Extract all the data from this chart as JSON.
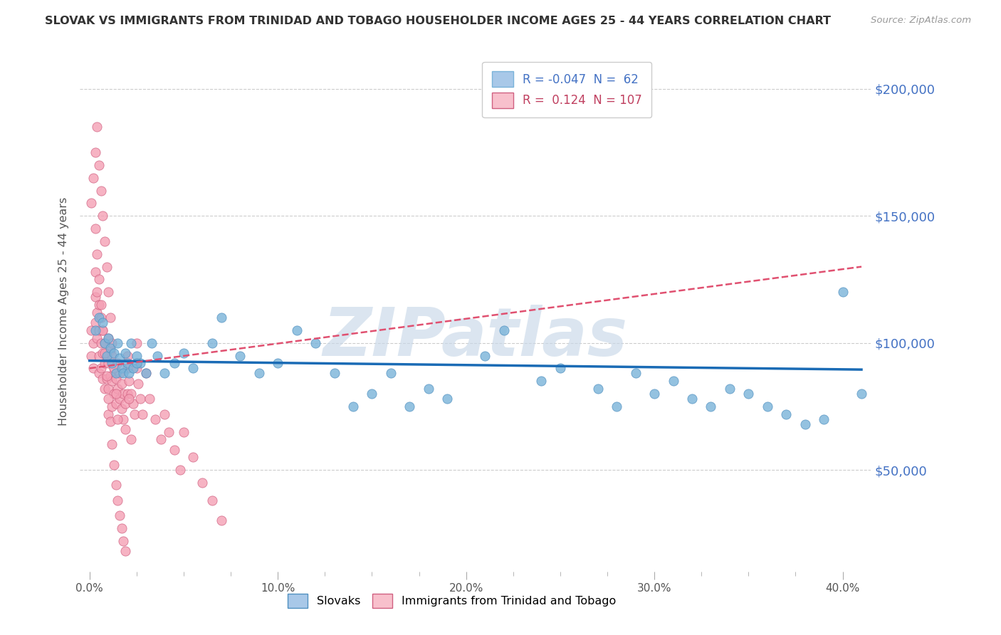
{
  "title": "SLOVAK VS IMMIGRANTS FROM TRINIDAD AND TOBAGO HOUSEHOLDER INCOME AGES 25 - 44 YEARS CORRELATION CHART",
  "source": "Source: ZipAtlas.com",
  "xlabel_ticks": [
    "0.0%",
    "",
    "",
    "",
    "10.0%",
    "",
    "",
    "",
    "20.0%",
    "",
    "",
    "",
    "30.0%",
    "",
    "",
    "",
    "40.0%"
  ],
  "xlabel_values": [
    0.0,
    0.025,
    0.05,
    0.075,
    0.1,
    0.125,
    0.15,
    0.175,
    0.2,
    0.225,
    0.25,
    0.275,
    0.3,
    0.325,
    0.35,
    0.375,
    0.4
  ],
  "xlabel_major": [
    0.0,
    0.1,
    0.2,
    0.3,
    0.4
  ],
  "xlabel_major_labels": [
    "0.0%",
    "10.0%",
    "20.0%",
    "30.0%",
    "40.0%"
  ],
  "ylabel": "Householder Income Ages 25 - 44 years",
  "ylabel_major": [
    50000,
    100000,
    150000,
    200000
  ],
  "ylabel_major_labels": [
    "$50,000",
    "$100,000",
    "$150,000",
    "$200,000"
  ],
  "ylim": [
    10000,
    215000
  ],
  "xlim": [
    -0.005,
    0.415
  ],
  "legend_blue_label": "R = -0.047  N =  62",
  "legend_pink_label": "R =  0.124  N = 107",
  "blue_color": "#7ab3d9",
  "blue_edge": "#5090c0",
  "blue_legend_color": "#a8c8e8",
  "pink_color": "#f4a0b5",
  "pink_edge": "#d06080",
  "pink_legend_color": "#f8c0cc",
  "trend_blue_color": "#1a6bb5",
  "trend_pink_color": "#e05070",
  "watermark": "ZIPatlas",
  "watermark_color": "#c8d8e8",
  "bg_color": "#ffffff",
  "grid_color": "#cccccc",
  "yaxis_label_color": "#4472c4",
  "blue_x": [
    0.003,
    0.005,
    0.007,
    0.008,
    0.009,
    0.01,
    0.011,
    0.012,
    0.013,
    0.014,
    0.015,
    0.016,
    0.017,
    0.018,
    0.019,
    0.02,
    0.021,
    0.022,
    0.023,
    0.025,
    0.027,
    0.03,
    0.033,
    0.036,
    0.04,
    0.045,
    0.05,
    0.055,
    0.065,
    0.07,
    0.08,
    0.09,
    0.1,
    0.12,
    0.13,
    0.14,
    0.15,
    0.16,
    0.17,
    0.18,
    0.19,
    0.21,
    0.22,
    0.24,
    0.25,
    0.27,
    0.28,
    0.29,
    0.3,
    0.31,
    0.32,
    0.33,
    0.34,
    0.35,
    0.36,
    0.37,
    0.38,
    0.39,
    0.4,
    0.41,
    0.025,
    0.11
  ],
  "blue_y": [
    105000,
    110000,
    108000,
    100000,
    95000,
    102000,
    98000,
    92000,
    96000,
    88000,
    100000,
    94000,
    90000,
    88000,
    96000,
    92000,
    88000,
    100000,
    90000,
    95000,
    92000,
    88000,
    100000,
    95000,
    88000,
    92000,
    96000,
    90000,
    100000,
    110000,
    95000,
    88000,
    92000,
    100000,
    88000,
    75000,
    80000,
    88000,
    75000,
    82000,
    78000,
    95000,
    105000,
    85000,
    90000,
    82000,
    75000,
    88000,
    80000,
    85000,
    78000,
    75000,
    82000,
    80000,
    75000,
    72000,
    68000,
    70000,
    120000,
    80000,
    92000,
    105000
  ],
  "pink_x": [
    0.001,
    0.001,
    0.002,
    0.002,
    0.003,
    0.003,
    0.003,
    0.004,
    0.004,
    0.004,
    0.005,
    0.005,
    0.005,
    0.005,
    0.006,
    0.006,
    0.006,
    0.007,
    0.007,
    0.007,
    0.008,
    0.008,
    0.008,
    0.009,
    0.009,
    0.01,
    0.01,
    0.01,
    0.01,
    0.011,
    0.011,
    0.012,
    0.012,
    0.012,
    0.013,
    0.013,
    0.014,
    0.014,
    0.015,
    0.015,
    0.016,
    0.016,
    0.017,
    0.017,
    0.018,
    0.018,
    0.019,
    0.019,
    0.02,
    0.02,
    0.021,
    0.022,
    0.023,
    0.024,
    0.025,
    0.026,
    0.027,
    0.028,
    0.03,
    0.032,
    0.035,
    0.038,
    0.04,
    0.042,
    0.045,
    0.048,
    0.05,
    0.055,
    0.06,
    0.065,
    0.07,
    0.001,
    0.002,
    0.003,
    0.004,
    0.005,
    0.006,
    0.007,
    0.008,
    0.009,
    0.01,
    0.011,
    0.012,
    0.013,
    0.014,
    0.015,
    0.016,
    0.017,
    0.018,
    0.019,
    0.02,
    0.021,
    0.022,
    0.003,
    0.004,
    0.005,
    0.006,
    0.007,
    0.008,
    0.009,
    0.01,
    0.011,
    0.012,
    0.013,
    0.014,
    0.015,
    0.025
  ],
  "pink_y": [
    105000,
    95000,
    100000,
    90000,
    128000,
    118000,
    108000,
    120000,
    112000,
    102000,
    115000,
    105000,
    95000,
    88000,
    110000,
    100000,
    90000,
    105000,
    96000,
    86000,
    100000,
    92000,
    82000,
    96000,
    86000,
    102000,
    92000,
    82000,
    72000,
    97000,
    87000,
    95000,
    85000,
    75000,
    90000,
    80000,
    86000,
    76000,
    92000,
    82000,
    88000,
    78000,
    84000,
    74000,
    80000,
    70000,
    76000,
    66000,
    90000,
    80000,
    85000,
    80000,
    76000,
    72000,
    90000,
    84000,
    78000,
    72000,
    88000,
    78000,
    70000,
    62000,
    72000,
    65000,
    58000,
    50000,
    65000,
    55000,
    45000,
    38000,
    30000,
    155000,
    165000,
    145000,
    135000,
    125000,
    115000,
    105000,
    96000,
    87000,
    78000,
    69000,
    60000,
    52000,
    44000,
    38000,
    32000,
    27000,
    22000,
    18000,
    95000,
    78000,
    62000,
    175000,
    185000,
    170000,
    160000,
    150000,
    140000,
    130000,
    120000,
    110000,
    100000,
    90000,
    80000,
    70000,
    100000
  ],
  "trend_blue_x0": 0.0,
  "trend_blue_x1": 0.41,
  "trend_blue_y0": 93000,
  "trend_blue_y1": 89500,
  "trend_pink_x0": 0.0,
  "trend_pink_x1": 0.41,
  "trend_pink_y0": 90000,
  "trend_pink_y1": 130000
}
